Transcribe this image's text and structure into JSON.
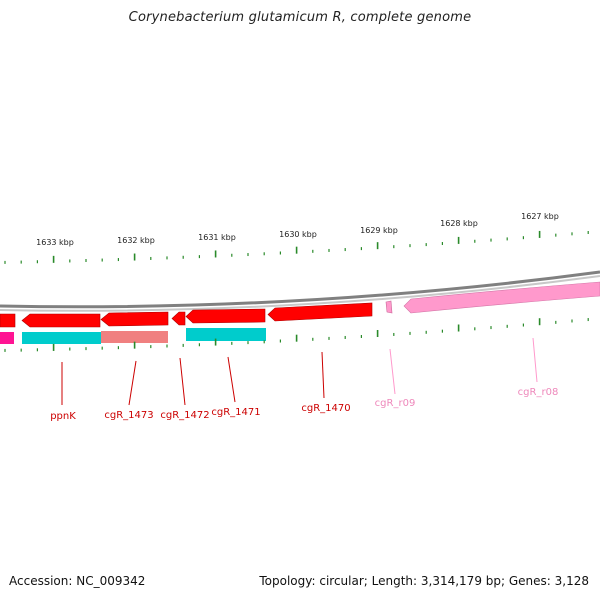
{
  "title": "Corynebacterium glutamicum R, complete genome",
  "footer": {
    "accession": "Accession: NC_009342",
    "topology": "Topology: circular; Length: 3,314,179 bp; Genes: 3,128"
  },
  "colors": {
    "cds": "#ff0000",
    "cds_dark": "#c00000",
    "rna": "#ff99cc",
    "rna_dark": "#cc6699",
    "cyan": "#00cccc",
    "salmon": "#f08080",
    "tick": "#2a8a2a",
    "backbone": "#888888"
  },
  "ruler": {
    "labels": [
      "1633 kbp",
      "1632 kbp",
      "1631 kbp",
      "1630 kbp",
      "1629 kbp",
      "1628 kbp",
      "1627 kbp"
    ]
  },
  "genes": [
    {
      "name": "ppnK",
      "type": "cds"
    },
    {
      "name": "cgR_1473",
      "type": "cds"
    },
    {
      "name": "cgR_1472",
      "type": "cds"
    },
    {
      "name": "cgR_1471",
      "type": "cds"
    },
    {
      "name": "cgR_1470",
      "type": "cds"
    },
    {
      "name": "cgR_r09",
      "type": "rna"
    },
    {
      "name": "cgR_r08",
      "type": "rna"
    }
  ]
}
